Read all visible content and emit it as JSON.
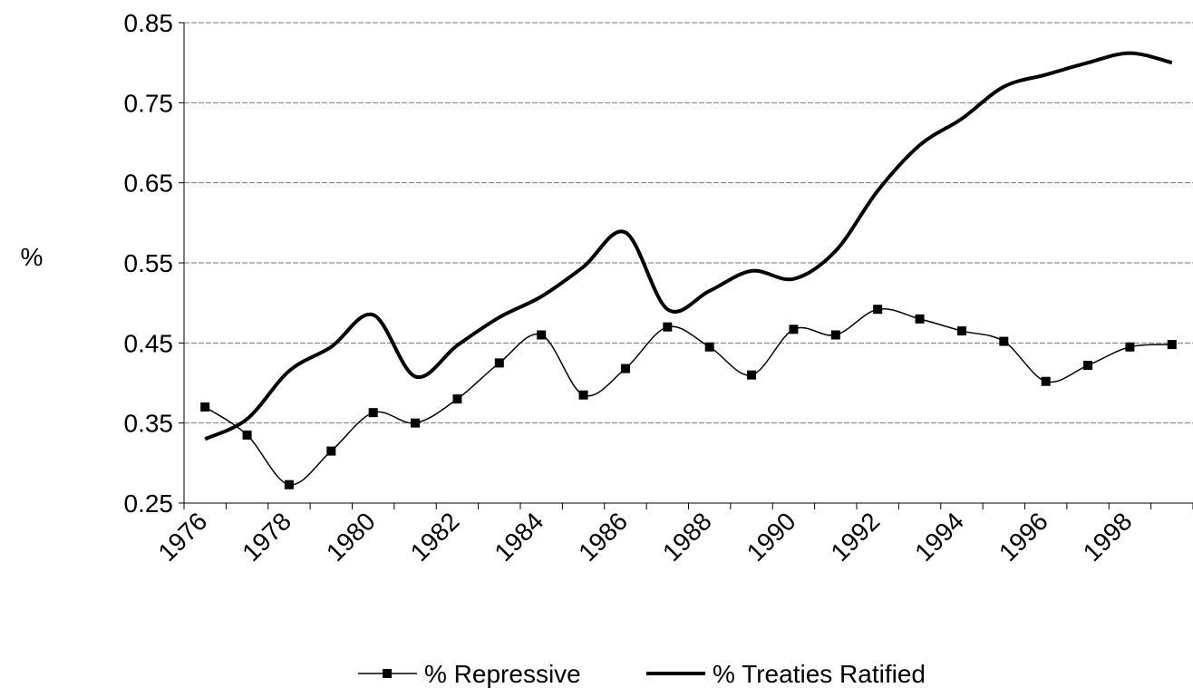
{
  "chart_data": {
    "type": "line",
    "y_label": "%",
    "categories": [
      "1976",
      null,
      "1978",
      null,
      "1980",
      null,
      "1982",
      null,
      "1984",
      null,
      "1986",
      null,
      "1988",
      null,
      "1990",
      null,
      "1992",
      null,
      "1994",
      null,
      "1996",
      null,
      "1998",
      null
    ],
    "series": [
      {
        "name": "% Repressive",
        "color": "#000000",
        "marker": "square",
        "values": [
          0.37,
          0.335,
          0.273,
          0.315,
          0.363,
          0.35,
          0.38,
          0.425,
          0.46,
          0.385,
          0.418,
          0.47,
          0.445,
          0.41,
          0.467,
          0.46,
          0.492,
          0.48,
          0.465,
          0.452,
          0.402,
          0.422,
          0.445,
          0.448
        ]
      },
      {
        "name": "% Treaties Ratified",
        "color": "#000000",
        "marker": "none",
        "values": [
          0.33,
          0.355,
          0.415,
          0.445,
          0.485,
          0.408,
          0.447,
          0.482,
          0.508,
          0.545,
          0.588,
          0.492,
          0.515,
          0.54,
          0.53,
          0.565,
          0.64,
          0.697,
          0.73,
          0.77,
          0.785,
          0.8,
          0.812,
          0.8
        ]
      }
    ],
    "ylim": [
      0.25,
      0.85
    ],
    "yticks": [
      0.25,
      0.35,
      0.45,
      0.55,
      0.65,
      0.75,
      0.85
    ],
    "grid": true,
    "legend": "bottom"
  }
}
